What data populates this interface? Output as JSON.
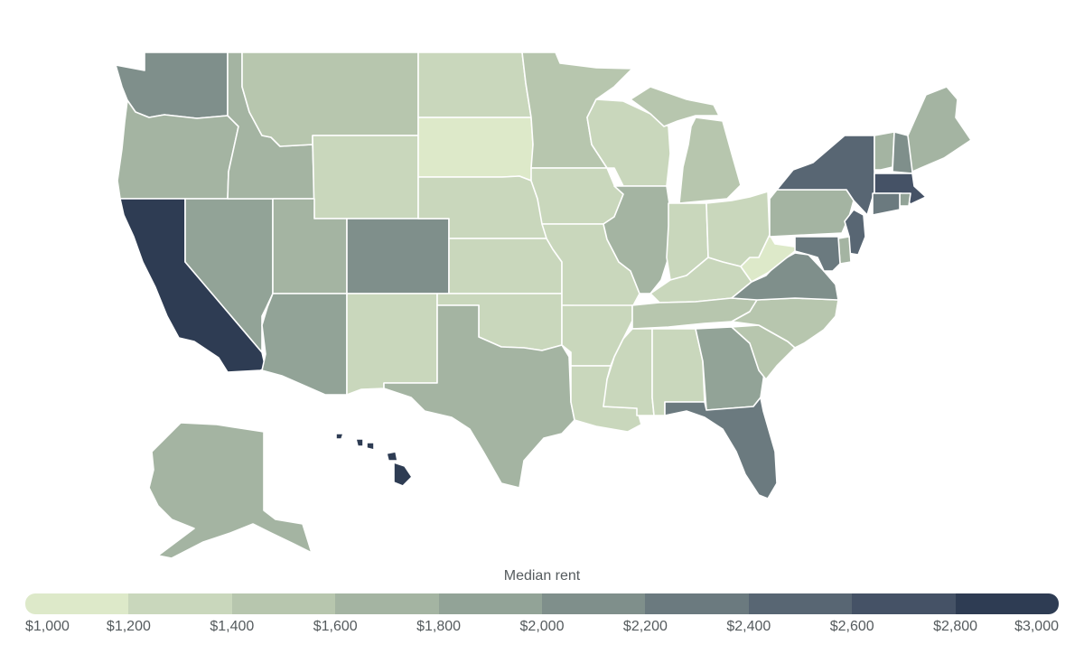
{
  "legend": {
    "title": "Median rent",
    "ticks": [
      "$1,000",
      "$1,200",
      "$1,400",
      "$1,600",
      "$1,800",
      "$2,000",
      "$2,200",
      "$2,400",
      "$2,600",
      "$2,800",
      "$3,000"
    ],
    "colors": [
      "#dde9c9",
      "#c9d7bc",
      "#b7c6ae",
      "#a4b4a2",
      "#92a397",
      "#7f8f8b",
      "#6b7a7f",
      "#586673",
      "#455266",
      "#2e3c53"
    ]
  },
  "scale": {
    "min": 1000,
    "max": 3000,
    "step": 200
  },
  "states": [
    {
      "code": "WA",
      "rent": 2100
    },
    {
      "code": "OR",
      "rent": 1700
    },
    {
      "code": "CA",
      "rent": 2900
    },
    {
      "code": "NV",
      "rent": 1900
    },
    {
      "code": "ID",
      "rent": 1600
    },
    {
      "code": "MT",
      "rent": 1500
    },
    {
      "code": "WY",
      "rent": 1300
    },
    {
      "code": "UT",
      "rent": 1700
    },
    {
      "code": "AZ",
      "rent": 1800
    },
    {
      "code": "CO",
      "rent": 2100
    },
    {
      "code": "NM",
      "rent": 1300
    },
    {
      "code": "ND",
      "rent": 1250
    },
    {
      "code": "SD",
      "rent": 1100
    },
    {
      "code": "NE",
      "rent": 1300
    },
    {
      "code": "KS",
      "rent": 1300
    },
    {
      "code": "OK",
      "rent": 1250
    },
    {
      "code": "TX",
      "rent": 1600
    },
    {
      "code": "MN",
      "rent": 1500
    },
    {
      "code": "IA",
      "rent": 1250
    },
    {
      "code": "MO",
      "rent": 1300
    },
    {
      "code": "AR",
      "rent": 1200
    },
    {
      "code": "LA",
      "rent": 1200
    },
    {
      "code": "WI",
      "rent": 1300
    },
    {
      "code": "IL",
      "rent": 1650
    },
    {
      "code": "MI",
      "rent": 1400
    },
    {
      "code": "IN",
      "rent": 1250
    },
    {
      "code": "OH",
      "rent": 1250
    },
    {
      "code": "KY",
      "rent": 1200
    },
    {
      "code": "TN",
      "rent": 1400
    },
    {
      "code": "MS",
      "rent": 1200
    },
    {
      "code": "AL",
      "rent": 1250
    },
    {
      "code": "GA",
      "rent": 1850
    },
    {
      "code": "FL",
      "rent": 2200
    },
    {
      "code": "SC",
      "rent": 1450
    },
    {
      "code": "NC",
      "rent": 1500
    },
    {
      "code": "VA",
      "rent": 2000
    },
    {
      "code": "WV",
      "rent": 1050
    },
    {
      "code": "PA",
      "rent": 1650
    },
    {
      "code": "NY",
      "rent": 2450
    },
    {
      "code": "VT",
      "rent": 1600
    },
    {
      "code": "NH",
      "rent": 2100
    },
    {
      "code": "ME",
      "rent": 1600
    },
    {
      "code": "MA",
      "rent": 2700
    },
    {
      "code": "CT",
      "rent": 2200
    },
    {
      "code": "RI",
      "rent": 1900
    },
    {
      "code": "NJ",
      "rent": 2400
    },
    {
      "code": "DE",
      "rent": 1700
    },
    {
      "code": "MD",
      "rent": 2200
    },
    {
      "code": "AK",
      "rent": 1650
    },
    {
      "code": "HI",
      "rent": 2850
    }
  ]
}
